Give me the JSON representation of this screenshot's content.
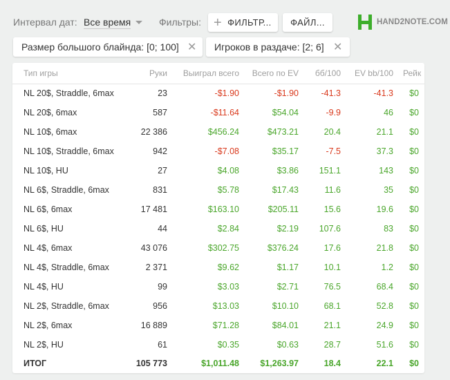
{
  "toolbar": {
    "date_label": "Интервал дат:",
    "date_value": "Все время",
    "filters_label": "Фильтры:",
    "filter_button": "ФИЛЬТР...",
    "file_button": "ФАЙЛ...",
    "logo_text": "HAND2NOTE.COM",
    "icons": {
      "add": "plus-icon",
      "dropdown": "chevron-down-icon",
      "logo": "h2n-logo-icon"
    }
  },
  "filters": [
    {
      "label": "Размер большого блайнда: [0; 100]"
    },
    {
      "label": "Игроков в раздаче: [2; 6]"
    }
  ],
  "colors": {
    "negative": "#d9391c",
    "positive": "#4aa62b",
    "logo": "#3dae2b"
  },
  "table": {
    "headers": [
      "Тип игры",
      "Руки",
      "Выиграл всего",
      "Всего по EV",
      "бб/100",
      "EV bb/100",
      "Рейк"
    ],
    "rows": [
      {
        "type": "NL 20$, Straddle, 6max",
        "hands": "23",
        "won": "-$1.90",
        "ev": "-$1.90",
        "bb": "-41.3",
        "evbb": "-41.3",
        "rake": "$0"
      },
      {
        "type": "NL 20$, 6max",
        "hands": "587",
        "won": "-$11.64",
        "ev": "$54.04",
        "bb": "-9.9",
        "evbb": "46",
        "rake": "$0"
      },
      {
        "type": "NL 10$, 6max",
        "hands": "22 386",
        "won": "$456.24",
        "ev": "$473.21",
        "bb": "20.4",
        "evbb": "21.1",
        "rake": "$0"
      },
      {
        "type": "NL 10$, Straddle, 6max",
        "hands": "942",
        "won": "-$7.08",
        "ev": "$35.17",
        "bb": "-7.5",
        "evbb": "37.3",
        "rake": "$0"
      },
      {
        "type": "NL 10$, HU",
        "hands": "27",
        "won": "$4.08",
        "ev": "$3.86",
        "bb": "151.1",
        "evbb": "143",
        "rake": "$0"
      },
      {
        "type": "NL 6$, Straddle, 6max",
        "hands": "831",
        "won": "$5.78",
        "ev": "$17.43",
        "bb": "11.6",
        "evbb": "35",
        "rake": "$0"
      },
      {
        "type": "NL 6$, 6max",
        "hands": "17 481",
        "won": "$163.10",
        "ev": "$205.11",
        "bb": "15.6",
        "evbb": "19.6",
        "rake": "$0"
      },
      {
        "type": "NL 6$, HU",
        "hands": "44",
        "won": "$2.84",
        "ev": "$2.19",
        "bb": "107.6",
        "evbb": "83",
        "rake": "$0"
      },
      {
        "type": "NL 4$, 6max",
        "hands": "43 076",
        "won": "$302.75",
        "ev": "$376.24",
        "bb": "17.6",
        "evbb": "21.8",
        "rake": "$0"
      },
      {
        "type": "NL 4$, Straddle, 6max",
        "hands": "2 371",
        "won": "$9.62",
        "ev": "$1.17",
        "bb": "10.1",
        "evbb": "1.2",
        "rake": "$0"
      },
      {
        "type": "NL 4$, HU",
        "hands": "99",
        "won": "$3.03",
        "ev": "$2.71",
        "bb": "76.5",
        "evbb": "68.4",
        "rake": "$0"
      },
      {
        "type": "NL 2$, Straddle, 6max",
        "hands": "956",
        "won": "$13.03",
        "ev": "$10.10",
        "bb": "68.1",
        "evbb": "52.8",
        "rake": "$0"
      },
      {
        "type": "NL 2$, 6max",
        "hands": "16 889",
        "won": "$71.28",
        "ev": "$84.01",
        "bb": "21.1",
        "evbb": "24.9",
        "rake": "$0"
      },
      {
        "type": "NL 2$, HU",
        "hands": "61",
        "won": "$0.35",
        "ev": "$0.63",
        "bb": "28.7",
        "evbb": "51.6",
        "rake": "$0"
      }
    ],
    "total": {
      "type": "ИТОГ",
      "hands": "105 773",
      "won": "$1,011.48",
      "ev": "$1,263.97",
      "bb": "18.4",
      "evbb": "22.1",
      "rake": "$0"
    }
  }
}
